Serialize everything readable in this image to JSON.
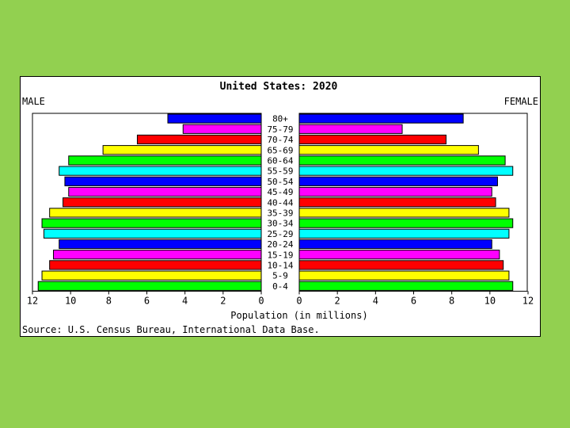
{
  "chart_data": {
    "type": "bar",
    "orientation": "population-pyramid",
    "title": "United States: 2020",
    "left_label": "MALE",
    "right_label": "FEMALE",
    "xlabel": "Population (in millions)",
    "source": "Source: U.S. Census Bureau, International Data Base.",
    "xlim": [
      0,
      12
    ],
    "x_ticks": [
      "0",
      "2",
      "4",
      "6",
      "8",
      "10",
      "12"
    ],
    "categories": [
      "80+",
      "75-79",
      "70-74",
      "65-69",
      "60-64",
      "55-59",
      "50-54",
      "45-49",
      "40-44",
      "35-39",
      "30-34",
      "25-29",
      "20-24",
      "15-19",
      "10-14",
      "5-9",
      "0-4"
    ],
    "series": [
      {
        "name": "MALE",
        "values": [
          4.9,
          4.1,
          6.5,
          8.3,
          10.1,
          10.6,
          10.3,
          10.1,
          10.4,
          11.1,
          11.5,
          11.4,
          10.6,
          10.9,
          11.1,
          11.5,
          11.7
        ]
      },
      {
        "name": "FEMALE",
        "values": [
          8.6,
          5.4,
          7.7,
          9.4,
          10.8,
          11.2,
          10.4,
          10.1,
          10.3,
          11.0,
          11.2,
          11.0,
          10.1,
          10.5,
          10.7,
          11.0,
          11.2
        ]
      }
    ],
    "bar_colors": [
      "#0000ff",
      "#ff00ff",
      "#ff0000",
      "#ffff00",
      "#00ff00",
      "#00ffff"
    ],
    "grid": false,
    "legend": "none"
  }
}
